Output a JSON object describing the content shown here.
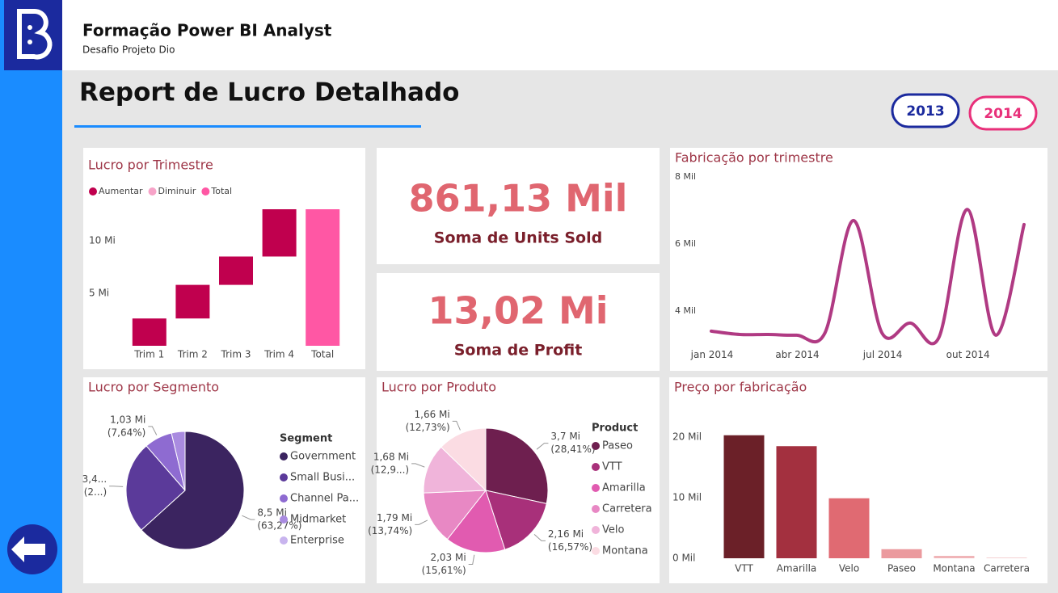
{
  "header": {
    "title": "Formação Power BI Analyst",
    "subtitle": "Desafio Projeto Dio"
  },
  "report_title": "Report de Lucro Detalhado",
  "year_buttons": [
    "2013",
    "2014"
  ],
  "chart_data": [
    {
      "type": "waterfall",
      "title": "Lucro por Trimestre",
      "legend": [
        {
          "name": "Aumentar",
          "color": "#c0004e"
        },
        {
          "name": "Diminuir",
          "color": "#f7a3c8"
        },
        {
          "name": "Total",
          "color": "#ff57a4"
        }
      ],
      "categories": [
        "Trim 1",
        "Trim 2",
        "Trim 3",
        "Trim 4",
        "Total"
      ],
      "values": [
        2.6,
        3.2,
        2.7,
        4.5,
        13.0
      ],
      "ylim": [
        0,
        13.5
      ],
      "yticks": [
        {
          "value": 5,
          "label": "5 Mi"
        },
        {
          "value": 10,
          "label": "10 Mi"
        }
      ]
    },
    {
      "type": "card",
      "value": "861,13 Mil",
      "label": "Soma de Units Sold"
    },
    {
      "type": "card",
      "value": "13,02 Mi",
      "label": "Soma de Profit"
    },
    {
      "type": "line",
      "title": "Fabricação por trimestre",
      "categories": [
        "jan 2014",
        null,
        null,
        "abr 2014",
        null,
        null,
        "jul 2014",
        null,
        null,
        "out 2014",
        null,
        null
      ],
      "values": [
        3.4,
        3.3,
        3.3,
        3.28,
        3.35,
        6.7,
        3.35,
        3.64,
        3.2,
        7.03,
        3.28,
        6.58
      ],
      "color": "#b03a83",
      "ylim": [
        2.9,
        8.2
      ],
      "yticks": [
        {
          "value": 4,
          "label": "4 Mil"
        },
        {
          "value": 6,
          "label": "6 Mil"
        },
        {
          "value": 8,
          "label": "8 Mil"
        }
      ]
    },
    {
      "type": "pie",
      "title": "Lucro por Segmento",
      "legend_title": "Segment",
      "series": [
        {
          "name": "Government",
          "color": "#3b2460",
          "values": [
            8.5
          ],
          "value_labels": [
            "8,5 Mi"
          ],
          "percent_labels": [
            "(63,27%)"
          ]
        },
        {
          "name": "Small Busi...",
          "color": "#5b3a9a",
          "values": [
            3.4
          ],
          "value_labels": [
            "3,4..."
          ],
          "percent_labels": [
            "(2...)"
          ]
        },
        {
          "name": "Channel Pa...",
          "color": "#8e6bd1",
          "values": [
            1.03
          ],
          "value_labels": [
            "1,03 Mi"
          ],
          "percent_labels": [
            "(7,64%)"
          ]
        },
        {
          "name": "Midmarket",
          "color": "#a98be0",
          "values": [
            0.5
          ],
          "value_labels": [
            null
          ],
          "percent_labels": [
            null
          ]
        },
        {
          "name": "Enterprise",
          "color": "#c8b4ee",
          "values": [
            0
          ],
          "value_labels": [
            null
          ],
          "percent_labels": [
            null
          ]
        }
      ]
    },
    {
      "type": "pie",
      "title": "Lucro por Produto",
      "legend_title": "Product",
      "series": [
        {
          "name": "Paseo",
          "color": "#6e1f4f",
          "values": [
            3.7
          ],
          "value_labels": [
            "3,7 Mi"
          ],
          "percent_labels": [
            "(28,41%)"
          ]
        },
        {
          "name": "VTT",
          "color": "#a8307a",
          "values": [
            2.16
          ],
          "value_labels": [
            "2,16 Mi"
          ],
          "percent_labels": [
            "(16,57%)"
          ]
        },
        {
          "name": "Amarilla",
          "color": "#e15bb0",
          "values": [
            2.03
          ],
          "value_labels": [
            "2,03 Mi"
          ],
          "percent_labels": [
            "(15,61%)"
          ]
        },
        {
          "name": "Carretera",
          "color": "#e888c4",
          "values": [
            1.79
          ],
          "value_labels": [
            "1,79 Mi"
          ],
          "percent_labels": [
            "(13,74%)"
          ]
        },
        {
          "name": "Velo",
          "color": "#f0b4da",
          "values": [
            1.68
          ],
          "value_labels": [
            "1,68 Mi"
          ],
          "percent_labels": [
            "(12,9...)"
          ]
        },
        {
          "name": "Montana",
          "color": "#fbdce3",
          "values": [
            1.66
          ],
          "value_labels": [
            "1,66 Mi"
          ],
          "percent_labels": [
            "(12,73%)"
          ]
        }
      ]
    },
    {
      "type": "bar",
      "title": "Preço por fabricação",
      "categories": [
        "VTT",
        "Amarilla",
        "Velo",
        "Paseo",
        "Montana",
        "Carretera"
      ],
      "values": [
        20.3,
        18.5,
        9.9,
        1.5,
        0.4,
        0.13
      ],
      "colors": [
        "#6b2028",
        "#a3303f",
        "#e06a72",
        "#eb9a9e",
        "#f0b5b8",
        "#f4d0d2"
      ],
      "ylim": [
        0,
        24
      ],
      "yticks": [
        {
          "value": 0,
          "label": "0 Mil"
        },
        {
          "value": 10,
          "label": "10 Mil"
        },
        {
          "value": 20,
          "label": "20 Mil"
        }
      ]
    }
  ]
}
